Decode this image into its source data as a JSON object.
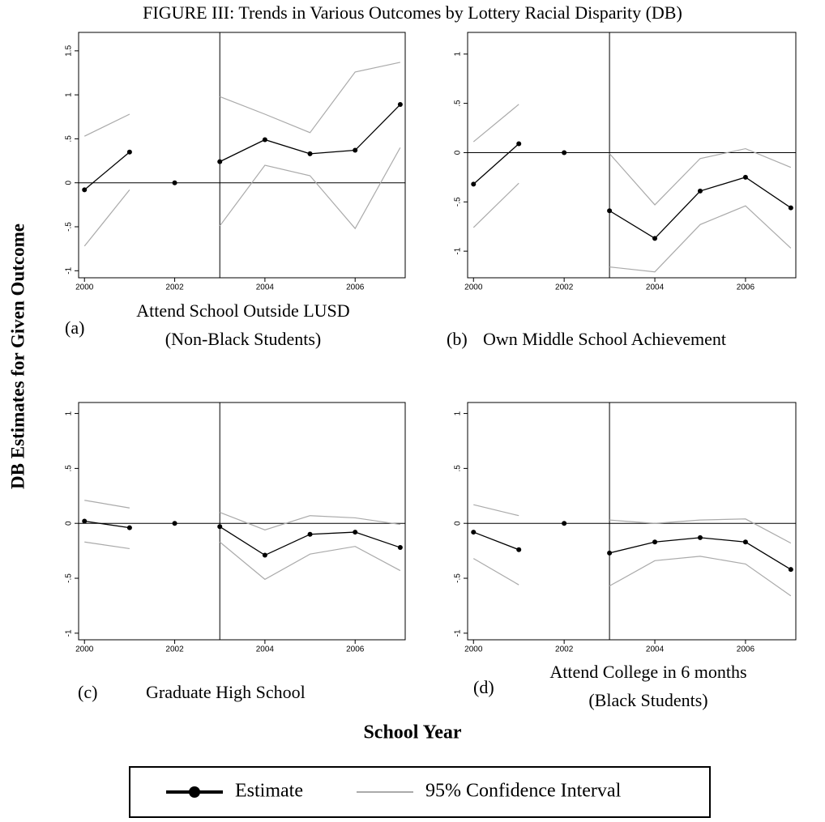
{
  "title": "FIGURE III: Trends in Various Outcomes by Lottery Racial Disparity (DB)",
  "y_label": "DB Estimates for Given Outcome",
  "x_label": "School Year",
  "legend": {
    "series": [
      {
        "name": "Estimate",
        "color": "#000000"
      },
      {
        "name": "95% Confidence Interval",
        "color": "#aaaaaa"
      }
    ]
  },
  "chart_data": [
    {
      "type": "line",
      "label": "(a)",
      "title": "Attend School Outside LUSD",
      "subtitle": "(Non-Black Students)",
      "x": [
        2000,
        2001,
        2002,
        2003,
        2004,
        2005,
        2006,
        2007
      ],
      "estimate": [
        -0.08,
        0.35,
        0,
        0.24,
        0.49,
        0.33,
        0.37,
        0.89
      ],
      "ci_upper": [
        0.53,
        0.78,
        null,
        0.98,
        0.78,
        0.57,
        1.26,
        1.37
      ],
      "ci_lower": [
        -0.72,
        -0.08,
        null,
        -0.49,
        0.2,
        0.08,
        -0.52,
        0.4
      ],
      "reference_x": 2002,
      "vline": 2003,
      "hline": 0,
      "xlim": [
        1999.87,
        2007.11
      ],
      "xticks": [
        2000,
        2002,
        2004,
        2006
      ],
      "ylim": [
        -1.08,
        1.71
      ],
      "yticks": [
        -1,
        {
          "value": -0.5,
          "label": "-.5"
        },
        0,
        {
          "value": 0.5,
          "label": ".5"
        },
        1,
        1.5
      ]
    },
    {
      "type": "line",
      "label": "(b)",
      "title": "Own Middle School Achievement",
      "x": [
        2000,
        2001,
        2002,
        2003,
        2004,
        2005,
        2006,
        2007
      ],
      "estimate": [
        -0.32,
        0.09,
        0,
        -0.59,
        -0.87,
        -0.39,
        -0.25,
        -0.56
      ],
      "ci_upper": [
        0.11,
        0.49,
        null,
        -0.01,
        -0.53,
        -0.06,
        0.04,
        -0.15
      ],
      "ci_lower": [
        -0.76,
        -0.31,
        null,
        -1.16,
        -1.21,
        -0.73,
        -0.54,
        -0.97
      ],
      "reference_x": 2002,
      "vline": 2003,
      "hline": 0,
      "xlim": [
        1999.87,
        2007.11
      ],
      "xticks": [
        2000,
        2002,
        2004,
        2006
      ],
      "ylim": [
        -1.27,
        1.22
      ],
      "yticks": [
        -1,
        {
          "value": -0.5,
          "label": "-.5"
        },
        0,
        {
          "value": 0.5,
          "label": ".5"
        },
        1
      ]
    },
    {
      "type": "line",
      "label": "(c)",
      "title": "Graduate High School",
      "x": [
        2000,
        2001,
        2002,
        2003,
        2004,
        2005,
        2006,
        2007
      ],
      "estimate": [
        0.02,
        -0.04,
        0,
        -0.03,
        -0.29,
        -0.1,
        -0.08,
        -0.22
      ],
      "ci_upper": [
        0.21,
        0.14,
        null,
        0.1,
        -0.06,
        0.07,
        0.05,
        -0.01
      ],
      "ci_lower": [
        -0.17,
        -0.23,
        null,
        -0.17,
        -0.51,
        -0.28,
        -0.21,
        -0.43
      ],
      "reference_x": 2002,
      "vline": 2003,
      "hline": 0,
      "xlim": [
        1999.87,
        2007.11
      ],
      "xticks": [
        2000,
        2002,
        2004,
        2006
      ],
      "ylim": [
        -1.06,
        1.1
      ],
      "yticks": [
        -1,
        {
          "value": -0.5,
          "label": "-.5"
        },
        0,
        {
          "value": 0.5,
          "label": ".5"
        },
        1
      ]
    },
    {
      "type": "line",
      "label": "(d)",
      "title": "Attend College in 6 months",
      "subtitle": "(Black Students)",
      "x": [
        2000,
        2001,
        2002,
        2003,
        2004,
        2005,
        2006,
        2007
      ],
      "estimate": [
        -0.08,
        -0.24,
        0,
        -0.27,
        -0.17,
        -0.13,
        -0.17,
        -0.42
      ],
      "ci_upper": [
        0.17,
        0.07,
        null,
        0.03,
        0,
        0.03,
        0.04,
        -0.18
      ],
      "ci_lower": [
        -0.32,
        -0.56,
        null,
        -0.57,
        -0.34,
        -0.3,
        -0.37,
        -0.66
      ],
      "reference_x": 2002,
      "vline": 2003,
      "hline": 0,
      "xlim": [
        1999.87,
        2007.11
      ],
      "xticks": [
        2000,
        2002,
        2004,
        2006
      ],
      "ylim": [
        -1.06,
        1.1
      ],
      "yticks": [
        -1,
        {
          "value": -0.5,
          "label": "-.5"
        },
        0,
        {
          "value": 0.5,
          "label": ".5"
        },
        1
      ]
    }
  ]
}
